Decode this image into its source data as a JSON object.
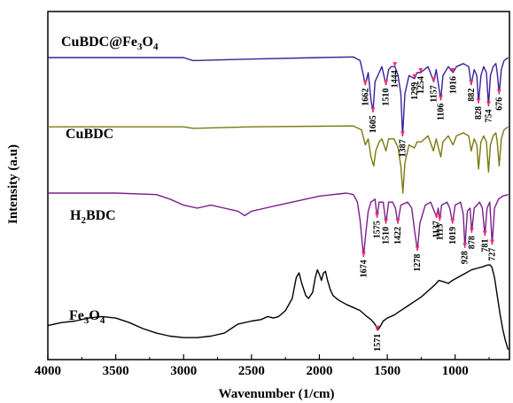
{
  "chart_data": {
    "type": "line",
    "xlabel": "Wavenumber (1/cm)",
    "ylabel": "Intensity (a.u)",
    "xlim": [
      4000,
      600
    ],
    "x_reversed": true,
    "x_ticks": [
      4000,
      3500,
      3000,
      2500,
      2000,
      1500,
      1000
    ],
    "x_tick_labels": [
      "4000",
      "3500",
      "3000",
      "2500",
      "2000",
      "1500",
      "1000"
    ],
    "y_tick_labels_shown": false,
    "grid": false,
    "legend": "none (labels placed next to each trace)",
    "series": [
      {
        "name": "CuBDC@Fe3O4",
        "label_main": "CuBDC@Fe",
        "label_sub": "3",
        "label_mid": "O",
        "label_sub2": "4",
        "color": "#3a1f9a",
        "peak_marker_color": "#ff2a6d",
        "offset": 0.95,
        "baseline_shape": [
          [
            4000,
            0.0
          ],
          [
            3500,
            0.0
          ],
          [
            3000,
            0.0
          ],
          [
            2930,
            -0.01
          ],
          [
            2500,
            -0.005
          ],
          [
            2000,
            0.0
          ],
          [
            1750,
            0.002
          ],
          [
            1700,
            -0.01
          ],
          [
            1680,
            -0.05
          ],
          [
            1662,
            -0.09
          ],
          [
            1640,
            -0.05
          ],
          [
            1620,
            -0.14
          ],
          [
            1605,
            -0.18
          ],
          [
            1590,
            -0.08
          ],
          [
            1560,
            -0.05
          ],
          [
            1540,
            -0.03
          ],
          [
            1510,
            -0.09
          ],
          [
            1490,
            -0.04
          ],
          [
            1470,
            -0.03
          ],
          [
            1444,
            -0.03
          ],
          [
            1420,
            -0.06
          ],
          [
            1400,
            -0.12
          ],
          [
            1387,
            -0.26
          ],
          [
            1370,
            -0.12
          ],
          [
            1340,
            -0.06
          ],
          [
            1299,
            -0.07
          ],
          [
            1280,
            -0.05
          ],
          [
            1254,
            -0.05
          ],
          [
            1200,
            -0.03
          ],
          [
            1157,
            -0.08
          ],
          [
            1140,
            -0.04
          ],
          [
            1106,
            -0.14
          ],
          [
            1090,
            -0.06
          ],
          [
            1050,
            -0.03
          ],
          [
            1016,
            -0.05
          ],
          [
            990,
            -0.03
          ],
          [
            940,
            -0.02
          ],
          [
            900,
            -0.03
          ],
          [
            882,
            -0.09
          ],
          [
            860,
            -0.04
          ],
          [
            840,
            -0.06
          ],
          [
            828,
            -0.15
          ],
          [
            810,
            -0.06
          ],
          [
            790,
            -0.03
          ],
          [
            770,
            -0.05
          ],
          [
            754,
            -0.16
          ],
          [
            740,
            -0.06
          ],
          [
            720,
            -0.03
          ],
          [
            700,
            -0.02
          ],
          [
            690,
            -0.05
          ],
          [
            676,
            -0.12
          ],
          [
            660,
            -0.04
          ],
          [
            640,
            -0.01
          ],
          [
            610,
            0.0
          ]
        ],
        "peaks": [
          1662,
          1605,
          1510,
          1444,
          1387,
          1299,
          1254,
          1157,
          1106,
          1016,
          882,
          828,
          754,
          676
        ]
      },
      {
        "name": "CuBDC",
        "label_main": "CuBDC",
        "color": "#7a7a10",
        "offset": 0.72,
        "baseline_shape": [
          [
            4000,
            0.0
          ],
          [
            3500,
            0.0
          ],
          [
            3000,
            0.0
          ],
          [
            2930,
            -0.005
          ],
          [
            2500,
            0.0
          ],
          [
            2000,
            0.002
          ],
          [
            1750,
            0.003
          ],
          [
            1690,
            -0.01
          ],
          [
            1662,
            -0.06
          ],
          [
            1640,
            -0.04
          ],
          [
            1620,
            -0.1
          ],
          [
            1600,
            -0.13
          ],
          [
            1585,
            -0.08
          ],
          [
            1560,
            -0.05
          ],
          [
            1540,
            -0.04
          ],
          [
            1510,
            -0.08
          ],
          [
            1490,
            -0.04
          ],
          [
            1450,
            -0.04
          ],
          [
            1420,
            -0.07
          ],
          [
            1400,
            -0.13
          ],
          [
            1385,
            -0.22
          ],
          [
            1370,
            -0.12
          ],
          [
            1340,
            -0.06
          ],
          [
            1300,
            -0.07
          ],
          [
            1280,
            -0.05
          ],
          [
            1250,
            -0.05
          ],
          [
            1200,
            -0.03
          ],
          [
            1160,
            -0.08
          ],
          [
            1140,
            -0.04
          ],
          [
            1106,
            -0.1
          ],
          [
            1090,
            -0.05
          ],
          [
            1050,
            -0.03
          ],
          [
            1016,
            -0.06
          ],
          [
            990,
            -0.03
          ],
          [
            940,
            -0.02
          ],
          [
            900,
            -0.03
          ],
          [
            882,
            -0.08
          ],
          [
            860,
            -0.04
          ],
          [
            840,
            -0.06
          ],
          [
            828,
            -0.14
          ],
          [
            810,
            -0.05
          ],
          [
            790,
            -0.03
          ],
          [
            770,
            -0.05
          ],
          [
            754,
            -0.15
          ],
          [
            740,
            -0.06
          ],
          [
            720,
            -0.03
          ],
          [
            700,
            -0.02
          ],
          [
            690,
            -0.05
          ],
          [
            676,
            -0.13
          ],
          [
            660,
            -0.04
          ],
          [
            640,
            -0.01
          ],
          [
            610,
            0.0
          ]
        ],
        "peaks": []
      },
      {
        "name": "H2BDC",
        "label_main": "H",
        "label_sub": "2",
        "label_mid": "BDC",
        "color": "#7a1f8a",
        "peak_marker_color": "#ff2a6d",
        "offset": 0.5,
        "baseline_shape": [
          [
            4000,
            0.0
          ],
          [
            3500,
            0.0
          ],
          [
            3200,
            -0.005
          ],
          [
            3100,
            -0.02
          ],
          [
            3000,
            -0.04
          ],
          [
            2900,
            -0.05
          ],
          [
            2800,
            -0.04
          ],
          [
            2700,
            -0.05
          ],
          [
            2600,
            -0.06
          ],
          [
            2550,
            -0.075
          ],
          [
            2500,
            -0.06
          ],
          [
            2400,
            -0.05
          ],
          [
            2300,
            -0.04
          ],
          [
            2200,
            -0.03
          ],
          [
            2100,
            -0.02
          ],
          [
            2000,
            -0.01
          ],
          [
            1900,
            -0.005
          ],
          [
            1800,
            0.0
          ],
          [
            1750,
            -0.005
          ],
          [
            1720,
            -0.03
          ],
          [
            1700,
            -0.09
          ],
          [
            1685,
            -0.16
          ],
          [
            1674,
            -0.21
          ],
          [
            1660,
            -0.14
          ],
          [
            1640,
            -0.06
          ],
          [
            1620,
            -0.03
          ],
          [
            1590,
            -0.02
          ],
          [
            1575,
            -0.08
          ],
          [
            1560,
            -0.03
          ],
          [
            1530,
            -0.03
          ],
          [
            1510,
            -0.1
          ],
          [
            1490,
            -0.03
          ],
          [
            1460,
            -0.03
          ],
          [
            1440,
            -0.05
          ],
          [
            1422,
            -0.1
          ],
          [
            1400,
            -0.04
          ],
          [
            1350,
            -0.03
          ],
          [
            1320,
            -0.05
          ],
          [
            1300,
            -0.12
          ],
          [
            1278,
            -0.19
          ],
          [
            1260,
            -0.1
          ],
          [
            1220,
            -0.04
          ],
          [
            1180,
            -0.03
          ],
          [
            1137,
            -0.08
          ],
          [
            1125,
            -0.05
          ],
          [
            1113,
            -0.09
          ],
          [
            1100,
            -0.04
          ],
          [
            1060,
            -0.03
          ],
          [
            1040,
            -0.05
          ],
          [
            1019,
            -0.1
          ],
          [
            1000,
            -0.04
          ],
          [
            960,
            -0.03
          ],
          [
            940,
            -0.07
          ],
          [
            928,
            -0.18
          ],
          [
            910,
            -0.06
          ],
          [
            890,
            -0.05
          ],
          [
            878,
            -0.13
          ],
          [
            860,
            -0.05
          ],
          [
            820,
            -0.03
          ],
          [
            800,
            -0.05
          ],
          [
            781,
            -0.14
          ],
          [
            765,
            -0.05
          ],
          [
            745,
            -0.03
          ],
          [
            727,
            -0.17
          ],
          [
            710,
            -0.05
          ],
          [
            680,
            -0.02
          ],
          [
            650,
            -0.01
          ],
          [
            610,
            -0.005
          ]
        ],
        "peaks": [
          1674,
          1575,
          1510,
          1422,
          1278,
          1137,
          1113,
          1019,
          928,
          878,
          781,
          727
        ]
      },
      {
        "name": "Fe3O4",
        "label_main": "Fe",
        "label_sub": "3",
        "label_mid": "O",
        "label_sub2": "4",
        "color": "#000000",
        "peak_marker_color": "#ff2a6d",
        "offset": 0.0,
        "baseline_shape": [
          [
            4000,
            0.06
          ],
          [
            3900,
            0.07
          ],
          [
            3800,
            0.075
          ],
          [
            3700,
            0.085
          ],
          [
            3600,
            0.09
          ],
          [
            3500,
            0.085
          ],
          [
            3400,
            0.07
          ],
          [
            3300,
            0.05
          ],
          [
            3200,
            0.035
          ],
          [
            3100,
            0.025
          ],
          [
            3000,
            0.02
          ],
          [
            2900,
            0.02
          ],
          [
            2800,
            0.025
          ],
          [
            2700,
            0.035
          ],
          [
            2650,
            0.05
          ],
          [
            2600,
            0.065
          ],
          [
            2500,
            0.075
          ],
          [
            2430,
            0.08
          ],
          [
            2380,
            0.09
          ],
          [
            2340,
            0.085
          ],
          [
            2300,
            0.09
          ],
          [
            2250,
            0.11
          ],
          [
            2200,
            0.15
          ],
          [
            2170,
            0.22
          ],
          [
            2150,
            0.235
          ],
          [
            2130,
            0.2
          ],
          [
            2100,
            0.16
          ],
          [
            2080,
            0.15
          ],
          [
            2050,
            0.17
          ],
          [
            2030,
            0.22
          ],
          [
            2015,
            0.245
          ],
          [
            2000,
            0.23
          ],
          [
            1985,
            0.21
          ],
          [
            1970,
            0.235
          ],
          [
            1955,
            0.24
          ],
          [
            1940,
            0.21
          ],
          [
            1920,
            0.18
          ],
          [
            1900,
            0.16
          ],
          [
            1860,
            0.145
          ],
          [
            1800,
            0.13
          ],
          [
            1750,
            0.12
          ],
          [
            1700,
            0.11
          ],
          [
            1650,
            0.09
          ],
          [
            1620,
            0.08
          ],
          [
            1600,
            0.07
          ],
          [
            1585,
            0.06
          ],
          [
            1571,
            0.045
          ],
          [
            1555,
            0.055
          ],
          [
            1530,
            0.075
          ],
          [
            1500,
            0.085
          ],
          [
            1450,
            0.095
          ],
          [
            1400,
            0.11
          ],
          [
            1350,
            0.125
          ],
          [
            1300,
            0.14
          ],
          [
            1250,
            0.155
          ],
          [
            1200,
            0.175
          ],
          [
            1150,
            0.195
          ],
          [
            1120,
            0.21
          ],
          [
            1080,
            0.205
          ],
          [
            1050,
            0.2
          ],
          [
            1020,
            0.21
          ],
          [
            1000,
            0.215
          ],
          [
            960,
            0.225
          ],
          [
            920,
            0.235
          ],
          [
            880,
            0.245
          ],
          [
            840,
            0.25
          ],
          [
            800,
            0.255
          ],
          [
            770,
            0.26
          ],
          [
            745,
            0.262
          ],
          [
            730,
            0.255
          ],
          [
            710,
            0.22
          ],
          [
            690,
            0.16
          ],
          [
            670,
            0.1
          ],
          [
            650,
            0.05
          ],
          [
            630,
            0.01
          ],
          [
            610,
            -0.02
          ]
        ],
        "peaks": [
          1571
        ]
      }
    ]
  }
}
